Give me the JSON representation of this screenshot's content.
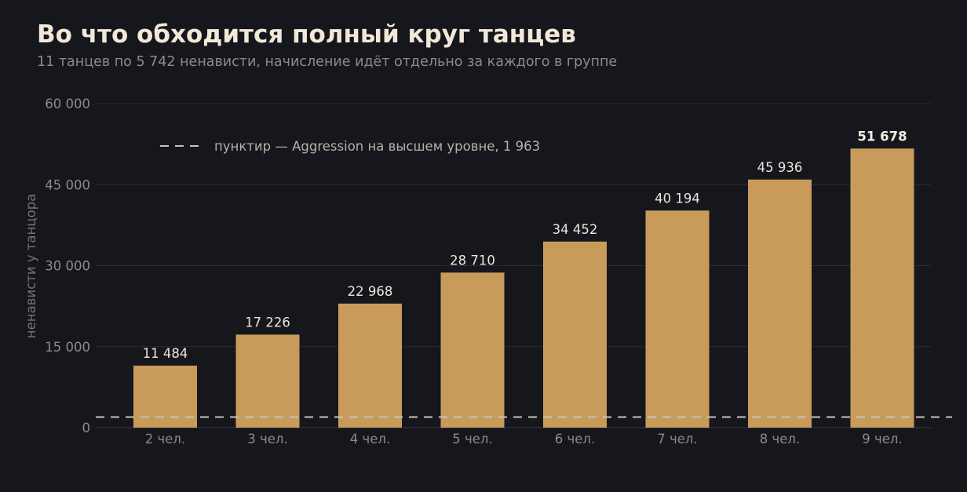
{
  "title": "Во что обходится полный круг танцев",
  "subtitle": "11 танцев по 5 742 ненависти, начисление идёт отдельно за каждого в группе",
  "colors": {
    "background": "#16171d",
    "bar": "#c99b5b",
    "reference_line": "#c9c3b8"
  },
  "chart_data": {
    "type": "bar",
    "categories": [
      "2 чел.",
      "3 чел.",
      "4 чел.",
      "5 чел.",
      "6 чел.",
      "7 чел.",
      "8 чел.",
      "9 чел."
    ],
    "values": [
      11484,
      17226,
      22968,
      28710,
      34452,
      40194,
      45936,
      51678
    ],
    "value_labels": [
      "11 484",
      "17 226",
      "22 968",
      "28 710",
      "34 452",
      "40 194",
      "45 936",
      "51 678"
    ],
    "ylabel": "ненависти у танцора",
    "ylim": [
      0,
      60000
    ],
    "yticks": [
      0,
      15000,
      30000,
      45000,
      60000
    ],
    "ytick_labels": [
      "0",
      "15 000",
      "30 000",
      "45 000",
      "60 000"
    ],
    "grid": true,
    "reference_line": {
      "value": 1963,
      "style": "dashed",
      "label": "пунктир — Aggression на высшем уровне, 1 963"
    },
    "legend_position": "top-left"
  }
}
